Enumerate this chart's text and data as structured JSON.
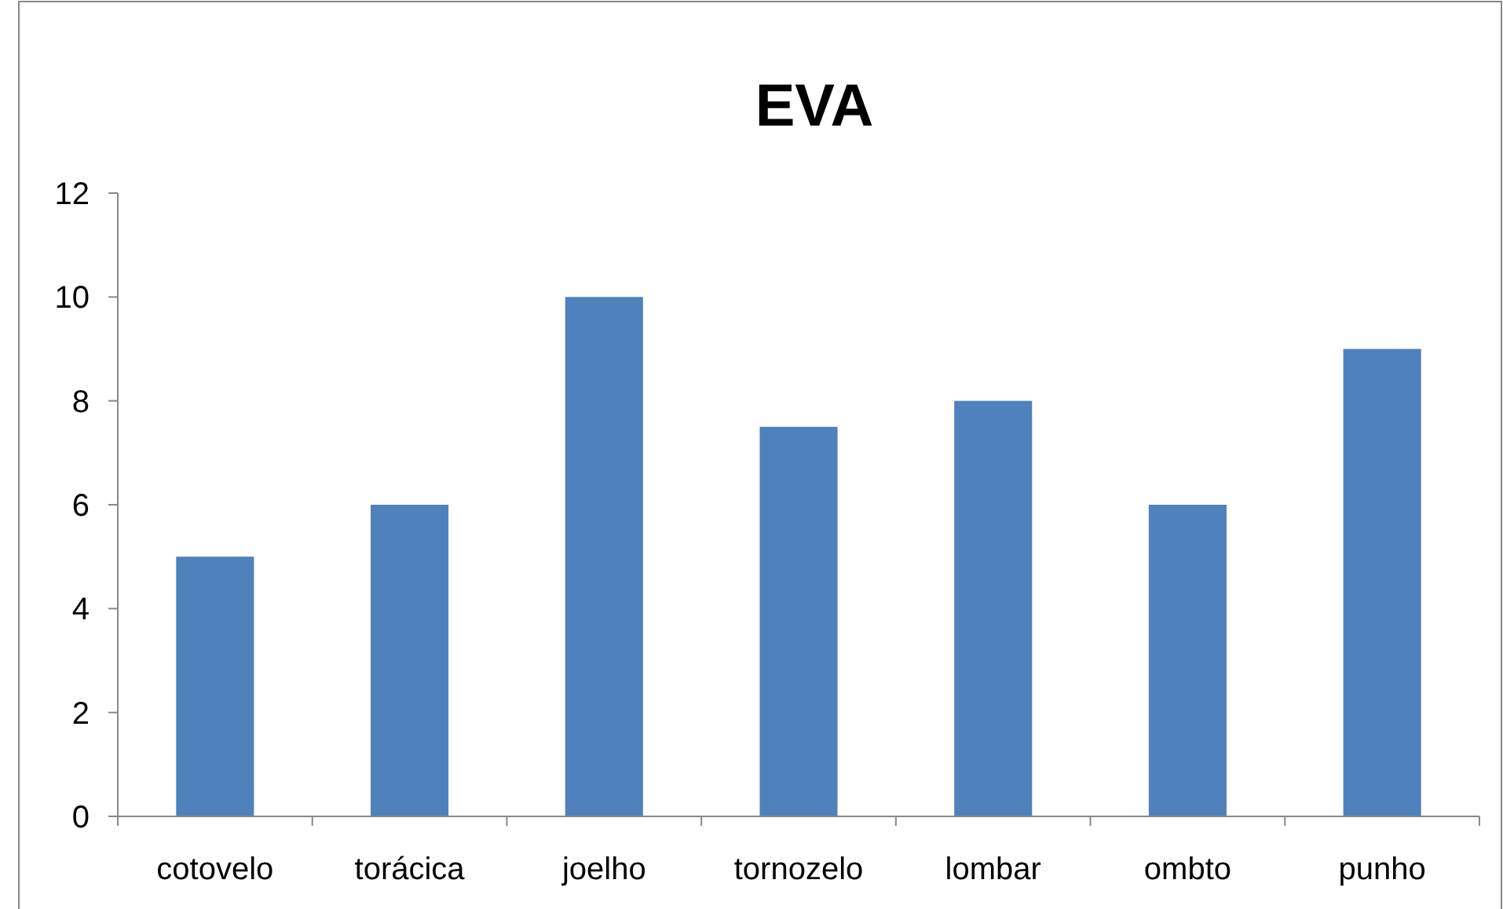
{
  "chart_data": {
    "type": "bar",
    "title": "EVA",
    "categories": [
      "cotovelo",
      "torácica",
      "joelho",
      "tornozelo",
      "lombar",
      "ombto",
      "punho"
    ],
    "values": [
      5,
      6,
      10,
      7.5,
      8,
      6,
      9
    ],
    "color": "#4f81bd",
    "ylim": [
      0,
      12
    ],
    "yticks": [
      0,
      2,
      4,
      6,
      8,
      10,
      12
    ]
  }
}
